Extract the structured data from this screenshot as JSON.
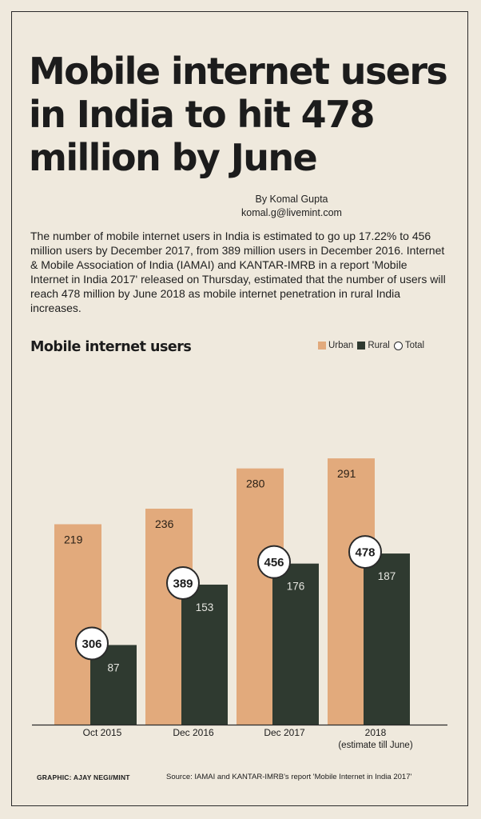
{
  "article": {
    "headline": "Mobile internet users in India to hit 478 million by June",
    "byline_name": "By Komal Gupta",
    "byline_email": "komal.g@livemint.com",
    "lede": "The number of mobile internet users in India is estimated to go up 17.22% to 456 million users by December 2017, from 389 million users in December 2016. Internet & Mobile Association of India (IAMAI) and KANTAR-IMRB in a report 'Mobile Internet in India 2017' released on Thursday, estimated that the number of users will reach 478 million by June 2018 as mobile internet penetration in rural India increases."
  },
  "footer": {
    "credit": "GRAPHIC: AJAY NEGI/MINT",
    "source": "Source: IAMAI and KANTAR-IMRB's report 'Mobile Internet in India 2017'"
  },
  "colors": {
    "urban": "#e2aa7c",
    "rural": "#2f3a30",
    "ring": "#2a2a2a"
  },
  "chart_data": {
    "type": "bar",
    "title": "Mobile internet users",
    "categories": [
      "Oct 2015",
      "Dec 2016",
      "Dec 2017",
      "2018"
    ],
    "category_notes": [
      "",
      "",
      "",
      "(estimate till June)"
    ],
    "series": [
      {
        "name": "Urban",
        "values": [
          219,
          236,
          280,
          291
        ]
      },
      {
        "name": "Rural",
        "values": [
          87,
          153,
          176,
          187
        ]
      }
    ],
    "total": {
      "name": "Total",
      "values": [
        306,
        389,
        456,
        478
      ]
    },
    "ylim": [
      0,
      300
    ],
    "grid": false,
    "legend": "top-right"
  }
}
